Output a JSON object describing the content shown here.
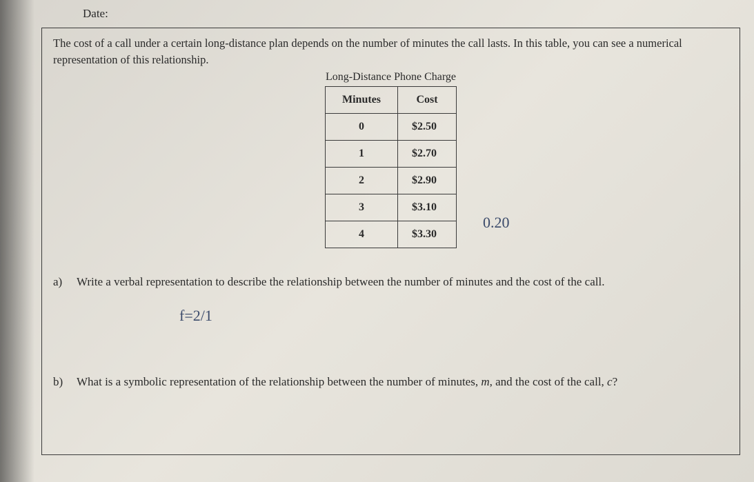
{
  "date_label": "Date:",
  "prompt_text": "The cost of a call under a certain long-distance plan depends on the number of minutes the call lasts. In this table, you can see a numerical representation of this relationship.",
  "table_title": "Long-Distance  Phone Charge",
  "table": {
    "columns": [
      "Minutes",
      "Cost"
    ],
    "rows": [
      [
        "0",
        "$2.50"
      ],
      [
        "1",
        "$2.70"
      ],
      [
        "2",
        "$2.90"
      ],
      [
        "3",
        "$3.10"
      ],
      [
        "4",
        "$3.30"
      ]
    ],
    "border_color": "#3a3a3a",
    "header_fontweight": 700,
    "cell_fontsize": 16
  },
  "handwriting": {
    "note1": "0.20",
    "note2": "f=2/1"
  },
  "questions": {
    "a": {
      "label": "a)",
      "text": "Write a verbal representation to describe the relationship between the number of minutes and the cost of the call."
    },
    "b": {
      "label": "b)",
      "text_before": "What is a symbolic representation of the relationship between the number of minutes, ",
      "var1": "m",
      "text_mid": ", and the cost of the call, ",
      "var2": "c",
      "text_after": "?"
    }
  },
  "styling": {
    "page_bg_gradient": [
      "#d8d5ce",
      "#e8e5dd",
      "#dcd9d1"
    ],
    "text_color": "#2a2a2a",
    "handwriting_color": "#3a4a6a",
    "box_border_color": "#3a3a3a",
    "body_font": "Georgia, Times New Roman, serif",
    "handwriting_font": "Comic Sans MS, cursive"
  }
}
